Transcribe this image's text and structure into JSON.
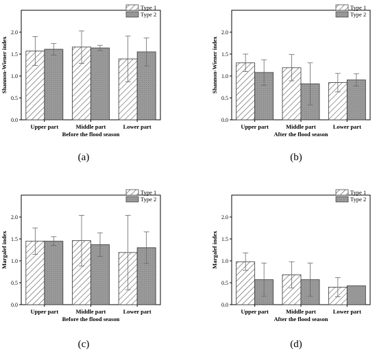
{
  "chart_data": [
    {
      "type": "bar",
      "panel": "(a)",
      "categories": [
        "Upper part",
        "Middle part",
        "Lower part"
      ],
      "series": [
        {
          "name": "Type 1",
          "values": [
            1.57,
            1.66,
            1.39
          ],
          "errors": [
            0.33,
            0.37,
            0.52
          ]
        },
        {
          "name": "Type 2",
          "values": [
            1.61,
            1.64,
            1.55
          ],
          "errors": [
            0.13,
            0.06,
            0.32
          ]
        }
      ],
      "xlabel": "Before the flood season",
      "ylabel": "Shannon-Wiener index",
      "ylim": [
        0,
        2.5
      ],
      "yticks": [
        "0.0",
        "0.5",
        "1.0",
        "1.5",
        "2.0"
      ],
      "legend": "top-right",
      "grid": false
    },
    {
      "type": "bar",
      "panel": "(b)",
      "categories": [
        "Upper part",
        "Middle part",
        "Lower part"
      ],
      "series": [
        {
          "name": "Type 1",
          "values": [
            1.3,
            1.19,
            0.85
          ],
          "errors": [
            0.2,
            0.3,
            0.21
          ]
        },
        {
          "name": "Type 2",
          "values": [
            1.08,
            0.82,
            0.91
          ],
          "errors": [
            0.29,
            0.48,
            0.14
          ]
        }
      ],
      "xlabel": "After the flood season",
      "ylabel": "Shannon-Wiener index",
      "ylim": [
        0,
        2.5
      ],
      "yticks": [
        "0.0",
        "0.5",
        "1.0",
        "1.5",
        "2.0"
      ],
      "legend": "top-right",
      "grid": false
    },
    {
      "type": "bar",
      "panel": "(c)",
      "categories": [
        "Upper part",
        "Middle part",
        "Lower part"
      ],
      "series": [
        {
          "name": "Type 1",
          "values": [
            1.45,
            1.46,
            1.19
          ],
          "errors": [
            0.3,
            0.58,
            0.85
          ]
        },
        {
          "name": "Type 2",
          "values": [
            1.45,
            1.37,
            1.3
          ],
          "errors": [
            0.1,
            0.27,
            0.36
          ]
        }
      ],
      "xlabel": "Before the flood season",
      "ylabel": "Margalef index",
      "ylim": [
        0,
        2.5
      ],
      "yticks": [
        "0.0",
        "0.5",
        "1.0",
        "1.5",
        "2.0"
      ],
      "legend": "top-right",
      "grid": false
    },
    {
      "type": "bar",
      "panel": "(d)",
      "categories": [
        "Upper part",
        "Middle part",
        "Lower part"
      ],
      "series": [
        {
          "name": "Type 1",
          "values": [
            0.98,
            0.68,
            0.4
          ],
          "errors": [
            0.2,
            0.3,
            0.22
          ]
        },
        {
          "name": "Type 2",
          "values": [
            0.57,
            0.57,
            0.43
          ],
          "errors": [
            0.38,
            0.38,
            0
          ]
        }
      ],
      "xlabel": "After the flood season",
      "ylabel": "Margalef index",
      "ylim": [
        0,
        2.5
      ],
      "yticks": [
        "0.0",
        "0.5",
        "1.0",
        "1.5",
        "2.0"
      ],
      "legend": "top-right",
      "grid": false
    }
  ],
  "colors": {
    "type1_fill": "#ffffff",
    "type1_hatch": "#555555",
    "type2_fill": "#9a9a9a",
    "axis": "#000000",
    "error_bar": "#666666"
  }
}
